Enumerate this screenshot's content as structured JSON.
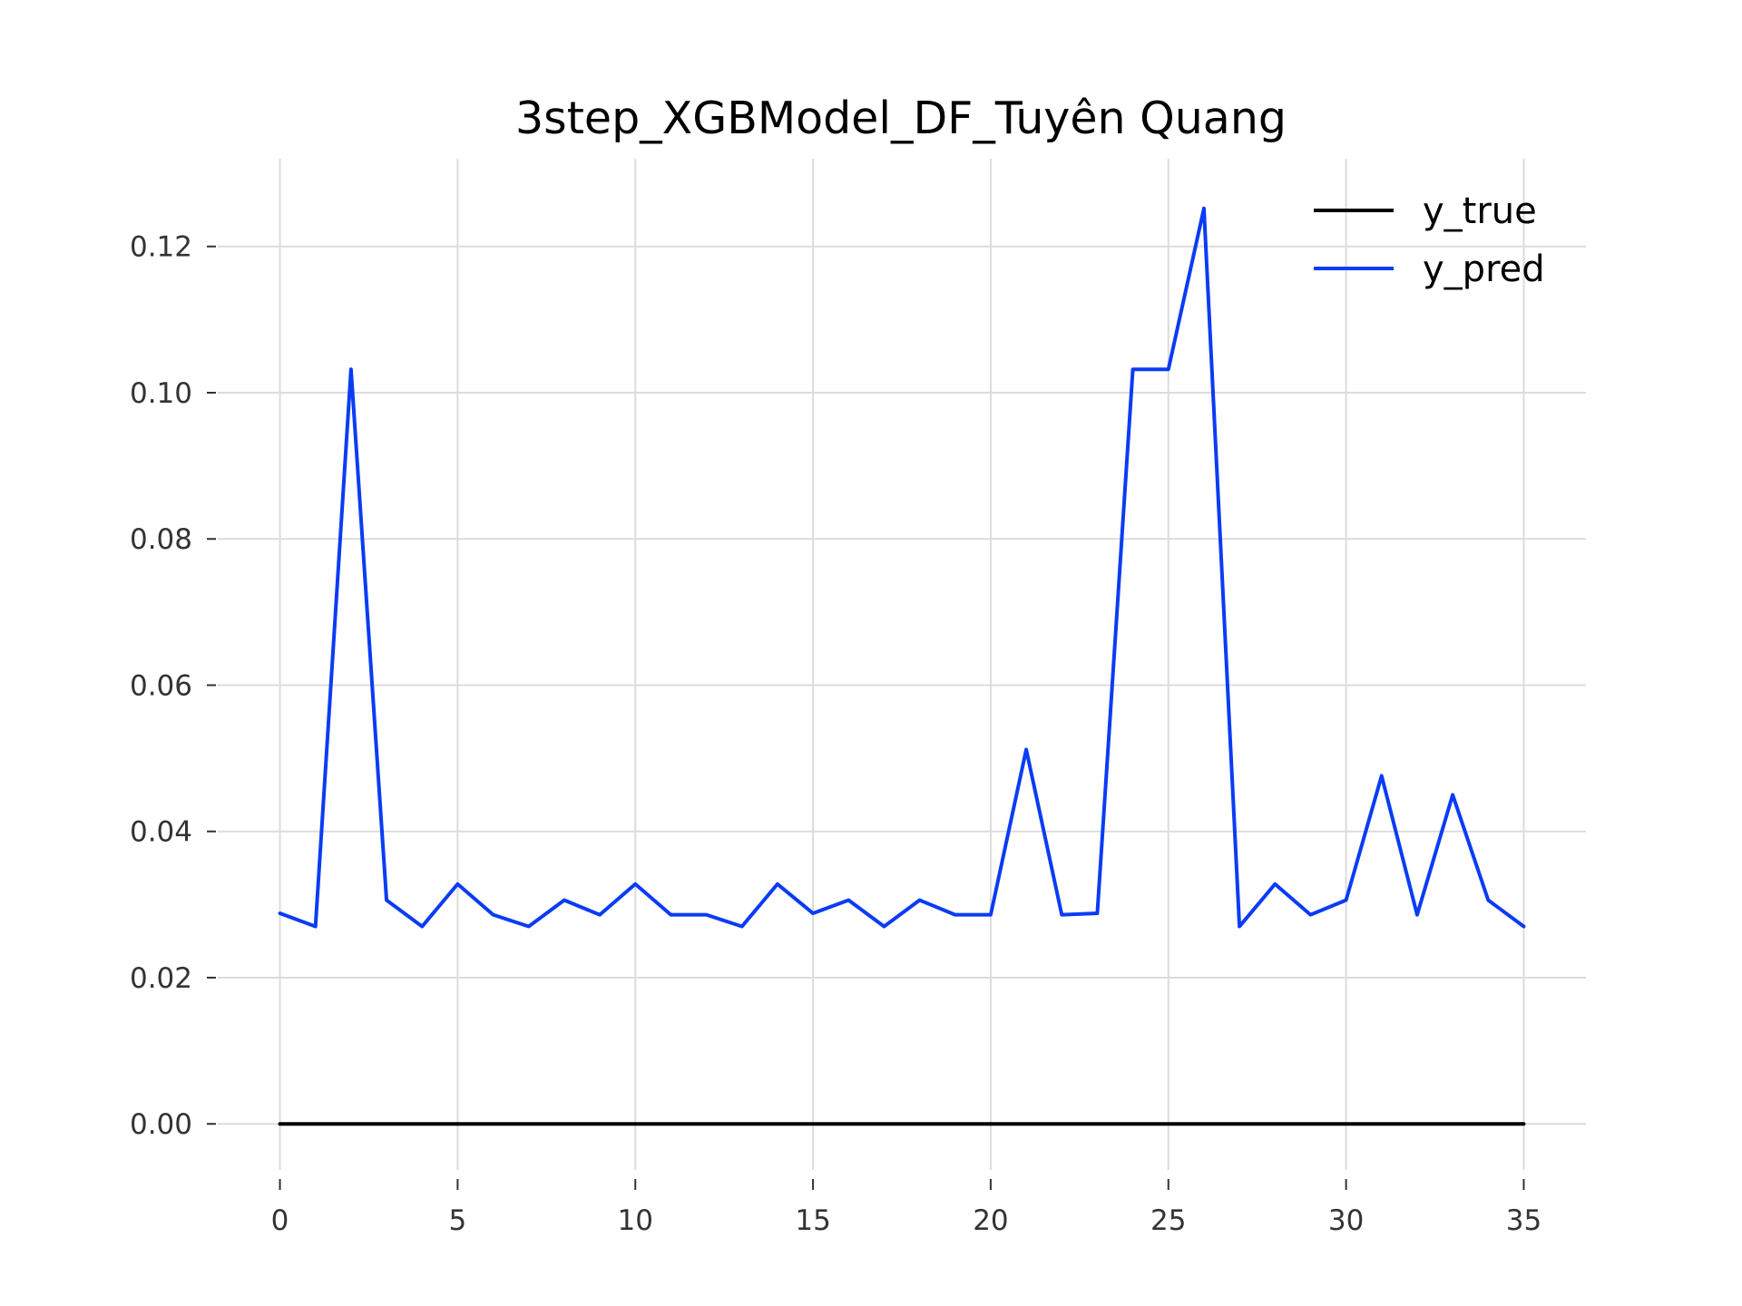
{
  "chart_data": {
    "type": "line",
    "title": "3step_XGBModel_DF_Tuyên Quang",
    "xlabel": "",
    "ylabel": "",
    "xlim": [
      -1.75,
      36.75
    ],
    "ylim": [
      -0.0063,
      0.132
    ],
    "x_ticks": [
      0,
      5,
      10,
      15,
      20,
      25,
      30,
      35
    ],
    "y_ticks": [
      0.0,
      0.02,
      0.04,
      0.06,
      0.08,
      0.1,
      0.12
    ],
    "y_tick_labels": [
      "0.00",
      "0.02",
      "0.04",
      "0.06",
      "0.08",
      "0.10",
      "0.12"
    ],
    "grid": true,
    "legend_position": "top-right",
    "x": [
      0,
      1,
      2,
      3,
      4,
      5,
      6,
      7,
      8,
      9,
      10,
      11,
      12,
      13,
      14,
      15,
      16,
      17,
      18,
      19,
      20,
      21,
      22,
      23,
      24,
      25,
      26,
      27,
      28,
      29,
      30,
      31,
      32,
      33,
      34,
      35
    ],
    "series": [
      {
        "name": "y_true",
        "color": "#000000",
        "values": [
          0,
          0,
          0,
          0,
          0,
          0,
          0,
          0,
          0,
          0,
          0,
          0,
          0,
          0,
          0,
          0,
          0,
          0,
          0,
          0,
          0,
          0,
          0,
          0,
          0,
          0,
          0,
          0,
          0,
          0,
          0,
          0,
          0,
          0,
          0,
          0
        ]
      },
      {
        "name": "y_pred",
        "color": "#0a3cf5",
        "values": [
          0.0288,
          0.027,
          0.1032,
          0.0306,
          0.027,
          0.0328,
          0.0286,
          0.027,
          0.0306,
          0.0286,
          0.0328,
          0.0286,
          0.0286,
          0.027,
          0.0328,
          0.0288,
          0.0306,
          0.027,
          0.0306,
          0.0286,
          0.0286,
          0.0512,
          0.0286,
          0.0288,
          0.1032,
          0.1032,
          0.1252,
          0.027,
          0.0328,
          0.0286,
          0.0306,
          0.0476,
          0.0286,
          0.045,
          0.0306,
          0.027
        ]
      }
    ]
  }
}
